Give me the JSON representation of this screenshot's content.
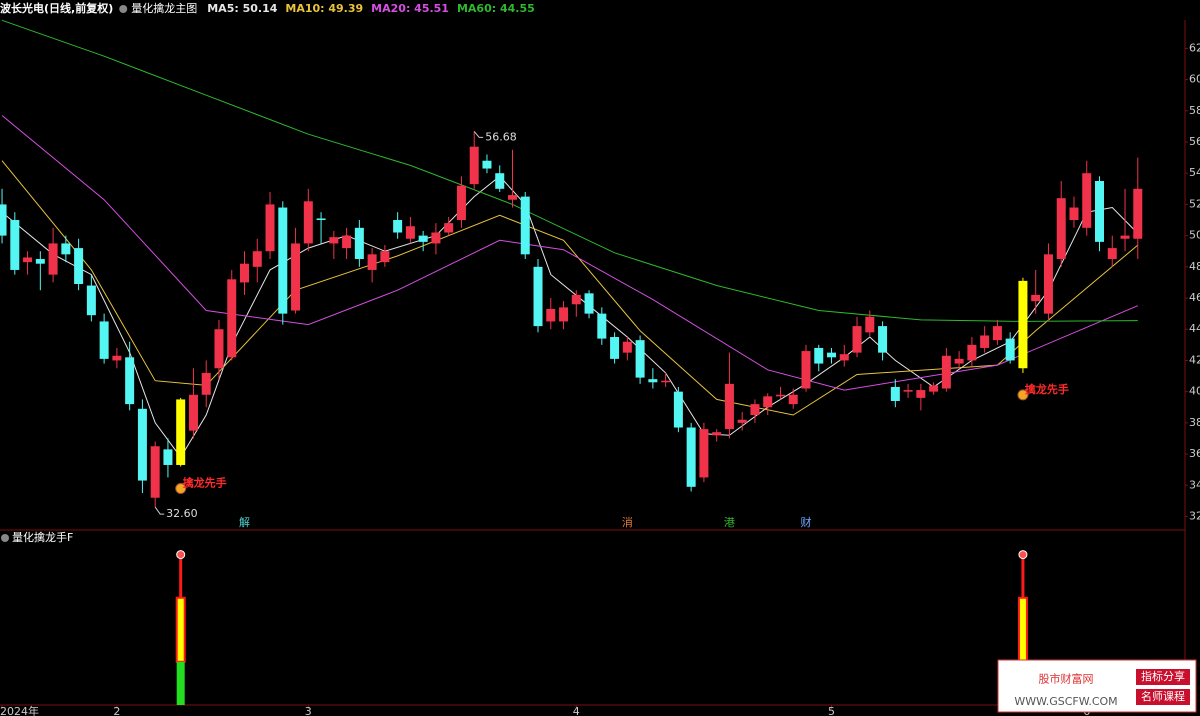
{
  "chart_data": {
    "type": "candlestick",
    "title": "波长光电(日线,前复权)",
    "subtitle": "量化擒龙主图",
    "up_color": "#f0334b",
    "down_color": "#54f6f4",
    "highlight_color": "#ffff00",
    "highlight_indices": [
      14,
      80
    ],
    "ylim": [
      31.26,
      63.82
    ],
    "yticks": [
      32,
      34,
      36,
      38,
      40,
      42,
      44,
      46,
      48,
      50,
      52,
      54,
      56,
      58,
      60,
      62
    ],
    "xlim": [
      -0.16,
      92.7
    ],
    "xticks": [
      {
        "value": 0,
        "label": "2024年"
      },
      {
        "value": 9,
        "label": "2"
      },
      {
        "value": 24,
        "label": "3"
      },
      {
        "value": 45,
        "label": "4"
      },
      {
        "value": 65,
        "label": "5"
      },
      {
        "value": 85,
        "label": "6"
      }
    ],
    "ohlc": [
      [
        52.0,
        53.0,
        49.5,
        50.0
      ],
      [
        51.0,
        51.5,
        47.5,
        47.8
      ],
      [
        48.3,
        49.0,
        47.5,
        48.6
      ],
      [
        48.5,
        49.0,
        46.5,
        48.2
      ],
      [
        47.5,
        50.5,
        47.0,
        49.5
      ],
      [
        49.5,
        50.0,
        48.3,
        48.8
      ],
      [
        49.2,
        49.8,
        46.5,
        46.9
      ],
      [
        46.8,
        47.5,
        44.5,
        44.9
      ],
      [
        44.5,
        45.0,
        41.8,
        42.1
      ],
      [
        42.0,
        42.8,
        41.5,
        42.3
      ],
      [
        42.2,
        43.2,
        38.8,
        39.2
      ],
      [
        38.9,
        39.5,
        33.5,
        34.3
      ],
      [
        33.2,
        36.8,
        32.6,
        36.5
      ],
      [
        36.3,
        37.0,
        34.5,
        35.3
      ],
      [
        35.3,
        39.6,
        35.2,
        39.5
      ],
      [
        37.5,
        41.5,
        37.0,
        39.8
      ],
      [
        39.8,
        42.0,
        39.0,
        41.2
      ],
      [
        41.5,
        44.6,
        40.8,
        44.0
      ],
      [
        42.2,
        47.8,
        42.0,
        47.2
      ],
      [
        47.0,
        49.0,
        46.2,
        48.2
      ],
      [
        48.0,
        49.8,
        47.0,
        49.0
      ],
      [
        49.0,
        52.8,
        48.5,
        52.0
      ],
      [
        51.8,
        52.2,
        44.3,
        45.0
      ],
      [
        45.2,
        50.5,
        45.0,
        49.5
      ],
      [
        49.5,
        53.0,
        49.0,
        52.2
      ],
      [
        51.1,
        51.5,
        49.5,
        51.0
      ],
      [
        49.5,
        50.3,
        48.5,
        49.9
      ],
      [
        49.2,
        50.5,
        48.5,
        50.0
      ],
      [
        50.5,
        51.0,
        48.0,
        48.5
      ],
      [
        47.8,
        49.2,
        47.0,
        48.8
      ],
      [
        48.3,
        49.4,
        48.0,
        49.0
      ],
      [
        51.0,
        51.5,
        49.8,
        50.2
      ],
      [
        49.8,
        51.2,
        49.5,
        50.6
      ],
      [
        50.0,
        50.3,
        49.0,
        49.6
      ],
      [
        49.5,
        50.8,
        48.8,
        50.2
      ],
      [
        50.2,
        51.2,
        50.0,
        50.8
      ],
      [
        51.0,
        53.8,
        50.5,
        53.2
      ],
      [
        53.3,
        56.68,
        53.0,
        55.7
      ],
      [
        54.8,
        55.2,
        54.0,
        54.3
      ],
      [
        54.0,
        54.5,
        52.8,
        53.0
      ],
      [
        52.3,
        55.5,
        51.8,
        52.6
      ],
      [
        52.5,
        52.8,
        48.5,
        48.8
      ],
      [
        48.0,
        48.5,
        43.8,
        44.2
      ],
      [
        44.5,
        46.0,
        44.0,
        45.3
      ],
      [
        44.5,
        45.8,
        44.0,
        45.4
      ],
      [
        45.6,
        46.5,
        44.8,
        46.2
      ],
      [
        46.3,
        46.5,
        44.7,
        45.0
      ],
      [
        45.0,
        45.4,
        43.0,
        43.4
      ],
      [
        43.5,
        43.8,
        41.8,
        42.1
      ],
      [
        42.5,
        43.5,
        42.0,
        43.2
      ],
      [
        43.3,
        43.6,
        40.5,
        40.9
      ],
      [
        40.8,
        41.5,
        40.2,
        40.6
      ],
      [
        40.6,
        41.2,
        40.3,
        40.7
      ],
      [
        40.0,
        40.3,
        37.4,
        37.7
      ],
      [
        37.7,
        38.0,
        33.6,
        33.9
      ],
      [
        34.5,
        38.0,
        34.2,
        37.6
      ],
      [
        37.2,
        37.6,
        36.8,
        37.4
      ],
      [
        37.6,
        42.5,
        37.0,
        40.5
      ],
      [
        38.0,
        38.7,
        37.5,
        38.2
      ],
      [
        38.5,
        39.5,
        38.0,
        39.2
      ],
      [
        39.0,
        39.9,
        38.5,
        39.7
      ],
      [
        39.7,
        40.3,
        39.5,
        39.8
      ],
      [
        39.2,
        40.2,
        38.9,
        39.8
      ],
      [
        40.2,
        43.0,
        40.0,
        42.6
      ],
      [
        42.8,
        43.0,
        41.3,
        41.8
      ],
      [
        42.5,
        42.8,
        41.8,
        42.2
      ],
      [
        42.0,
        43.0,
        41.6,
        42.4
      ],
      [
        42.5,
        44.8,
        42.2,
        44.2
      ],
      [
        43.8,
        45.2,
        43.5,
        44.8
      ],
      [
        44.2,
        44.5,
        42.0,
        42.5
      ],
      [
        40.3,
        40.8,
        39.0,
        39.4
      ],
      [
        40.0,
        40.5,
        39.6,
        40.1
      ],
      [
        39.6,
        40.5,
        38.8,
        40.1
      ],
      [
        40.0,
        40.6,
        39.8,
        40.4
      ],
      [
        40.2,
        42.8,
        40.0,
        42.3
      ],
      [
        41.8,
        42.6,
        41.5,
        42.1
      ],
      [
        42.0,
        43.5,
        41.6,
        43.0
      ],
      [
        42.8,
        44.2,
        42.5,
        43.6
      ],
      [
        43.3,
        44.6,
        43.0,
        44.2
      ],
      [
        43.4,
        43.8,
        41.8,
        42.0
      ],
      [
        41.5,
        47.3,
        41.2,
        47.1
      ],
      [
        45.8,
        47.8,
        45.0,
        46.2
      ],
      [
        45.0,
        49.5,
        44.5,
        48.8
      ],
      [
        48.5,
        53.5,
        48.0,
        52.4
      ],
      [
        51.0,
        52.5,
        50.5,
        51.8
      ],
      [
        50.5,
        54.8,
        50.0,
        54.0
      ],
      [
        53.5,
        53.8,
        49.0,
        49.6
      ],
      [
        48.5,
        50.0,
        48.0,
        49.2
      ],
      [
        49.8,
        53.0,
        49.0,
        50.0
      ],
      [
        49.8,
        55.0,
        48.5,
        53.0
      ]
    ],
    "series": [
      {
        "legend_label": "MA5: 50.14",
        "color": "#e6e6e6",
        "x": [
          0,
          4,
          7,
          10,
          12,
          14,
          16,
          18,
          21,
          24,
          27,
          30,
          34,
          37,
          39,
          41,
          43,
          46,
          49,
          52,
          55,
          57,
          60,
          63,
          66,
          68,
          70,
          73,
          76,
          79,
          82,
          85,
          87,
          89
        ],
        "values": [
          51.5,
          48.8,
          47.5,
          42.5,
          38.0,
          35.8,
          38.5,
          43.0,
          47.8,
          49.2,
          50.0,
          49.0,
          50.0,
          52.5,
          53.8,
          52.0,
          47.5,
          45.5,
          43.5,
          41.2,
          37.3,
          37.2,
          39.0,
          40.5,
          42.2,
          43.5,
          42.0,
          40.3,
          42.0,
          43.2,
          46.5,
          51.5,
          51.8,
          50.14
        ]
      },
      {
        "legend_label": "MA10: 49.39",
        "color": "#e8c33c",
        "x": [
          0,
          7,
          12,
          16,
          23,
          31,
          39,
          44,
          50,
          56,
          62,
          67,
          78,
          81,
          89
        ],
        "values": [
          54.8,
          47.8,
          40.7,
          40.4,
          46.5,
          48.7,
          51.3,
          49.7,
          43.9,
          39.5,
          38.5,
          41.1,
          41.7,
          43.9,
          49.39
        ]
      },
      {
        "legend_label": "MA20: 45.51",
        "color": "#d54fe0",
        "x": [
          0,
          8,
          16,
          24,
          31,
          39,
          44,
          51,
          60,
          66,
          78,
          89
        ],
        "values": [
          57.7,
          52.3,
          45.2,
          44.3,
          46.5,
          49.7,
          49.1,
          45.9,
          41.4,
          40.1,
          41.7,
          45.51
        ]
      },
      {
        "legend_label": "MA60: 44.55",
        "color": "#2eb82e",
        "x": [
          0,
          8,
          16,
          24,
          32,
          40,
          48,
          56,
          64,
          72,
          80,
          89
        ],
        "values": [
          63.8,
          61.5,
          59.0,
          56.5,
          54.5,
          52.0,
          48.9,
          46.8,
          45.2,
          44.6,
          44.5,
          44.55
        ]
      }
    ],
    "annotations": [
      {
        "index": 37,
        "value": 56.68,
        "label": "56.68"
      },
      {
        "index": 12,
        "value": 32.6,
        "label": "32.60"
      }
    ],
    "signals": [
      {
        "index": 14,
        "label": "擒龙先手"
      },
      {
        "index": 80,
        "label": "擒龙先手"
      }
    ],
    "events": [
      {
        "index": 19,
        "label": "解",
        "color": "#4fd3d3"
      },
      {
        "index": 49,
        "label": "消",
        "color": "#e07a3a"
      },
      {
        "index": 57,
        "label": "港",
        "color": "#2eb82e"
      },
      {
        "index": 63,
        "label": "财",
        "color": "#6fa8ff"
      }
    ],
    "indicator": {
      "title": "量化擒龙手F",
      "ylim": [
        0,
        100
      ],
      "bars": [
        {
          "index": 14,
          "top": 94,
          "block": [
            27,
            67
          ],
          "base": 0
        },
        {
          "index": 80,
          "top": 94,
          "block": [
            9,
            67
          ],
          "base": 9
        }
      ]
    },
    "watermark": {
      "name": "股市财富网",
      "url": "WWW.GSCFW.COM",
      "tags": [
        "指标分享",
        "名师课程"
      ]
    }
  }
}
